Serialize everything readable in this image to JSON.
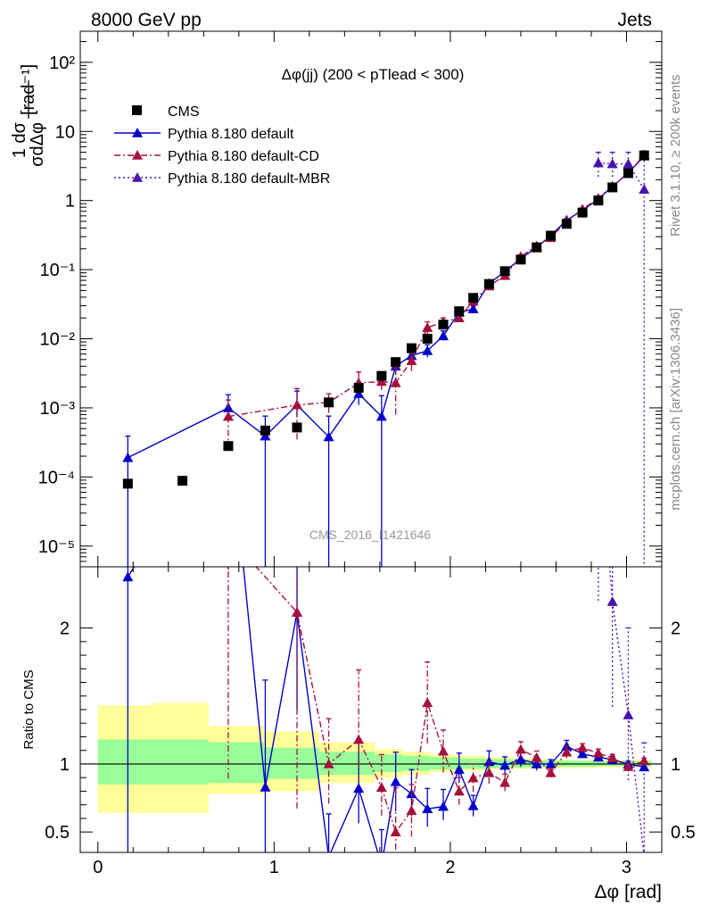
{
  "chart_data": {
    "type": "scatter",
    "header": {
      "left": "8000 GeV pp",
      "right": "Jets"
    },
    "title": "Δφ(jj) (200 < pTlead <  300)",
    "watermark": "CMS_2016_I1421646",
    "side_labels": {
      "rivet": "Rivet 3.1.10, ≥ 200k events",
      "mcplots": "mcplots.cern.ch [arXiv:1306.3436]"
    },
    "ylabel": {
      "frac_top": "1",
      "frac_top_d": "dσ",
      "frac_bottom": "σdΔφ",
      "unit": "[rad⁻¹]"
    },
    "ratio_ylabel": "Ratio to CMS",
    "xlabel": "Δφ [rad]",
    "xlim": [
      -0.1,
      3.2
    ],
    "ylim_main_log10": [
      -5.3,
      2.45
    ],
    "ratio_ylim": [
      0.35,
      2.45
    ],
    "x_ticks": [
      {
        "v": 0,
        "label": "0"
      },
      {
        "v": 1,
        "label": "1"
      },
      {
        "v": 2,
        "label": "2"
      },
      {
        "v": 3,
        "label": "3"
      }
    ],
    "main_ticks": [
      {
        "e": -5,
        "label": "10⁻⁵"
      },
      {
        "e": -4,
        "label": "10⁻⁴"
      },
      {
        "e": -3,
        "label": "10⁻³"
      },
      {
        "e": -2,
        "label": "10⁻²"
      },
      {
        "e": -1,
        "label": "10⁻¹"
      },
      {
        "e": 0,
        "label": "1"
      },
      {
        "e": 1,
        "label": "10"
      },
      {
        "e": 2,
        "label": "10²"
      }
    ],
    "ratio_ticks": [
      {
        "v": 0.5,
        "label": "0.5"
      },
      {
        "v": 1,
        "label": "1"
      },
      {
        "v": 2,
        "label": "2"
      }
    ],
    "legend": [
      {
        "label": "CMS",
        "style": "data"
      },
      {
        "label": "Pythia 8.180 default",
        "style": "solid",
        "color": "#0000cc"
      },
      {
        "label": "Pythia 8.180 default-CD",
        "style": "dashdot",
        "color": "#a6113b"
      },
      {
        "label": "Pythia 8.180 default-MBR",
        "style": "dotted",
        "color": "#4a11b0"
      }
    ],
    "bands": [
      {
        "x0": 0.0,
        "x1": 0.314,
        "g": [
          0.85,
          1.18
        ],
        "y": [
          0.64,
          1.43
        ]
      },
      {
        "x0": 0.314,
        "x1": 0.628,
        "g": [
          0.85,
          1.18
        ],
        "y": [
          0.64,
          1.45
        ]
      },
      {
        "x0": 0.628,
        "x1": 0.942,
        "g": [
          0.86,
          1.16
        ],
        "y": [
          0.78,
          1.28
        ]
      },
      {
        "x0": 0.942,
        "x1": 1.257,
        "g": [
          0.89,
          1.12
        ],
        "y": [
          0.8,
          1.24
        ]
      },
      {
        "x0": 1.257,
        "x1": 1.571,
        "g": [
          0.92,
          1.09
        ],
        "y": [
          0.86,
          1.16
        ]
      },
      {
        "x0": 1.571,
        "x1": 1.728,
        "g": [
          0.94,
          1.07
        ],
        "y": [
          0.9,
          1.11
        ]
      },
      {
        "x0": 1.728,
        "x1": 1.885,
        "g": [
          0.95,
          1.06
        ],
        "y": [
          0.92,
          1.09
        ]
      },
      {
        "x0": 1.885,
        "x1": 2.042,
        "g": [
          0.96,
          1.05
        ],
        "y": [
          0.94,
          1.07
        ]
      },
      {
        "x0": 2.042,
        "x1": 2.199,
        "g": [
          0.965,
          1.04
        ],
        "y": [
          0.95,
          1.06
        ]
      },
      {
        "x0": 2.199,
        "x1": 2.356,
        "g": [
          0.97,
          1.035
        ],
        "y": [
          0.96,
          1.05
        ]
      },
      {
        "x0": 2.356,
        "x1": 2.513,
        "g": [
          0.975,
          1.03
        ],
        "y": [
          0.965,
          1.04
        ]
      },
      {
        "x0": 2.513,
        "x1": 2.67,
        "g": [
          0.98,
          1.025
        ],
        "y": [
          0.97,
          1.035
        ]
      },
      {
        "x0": 2.67,
        "x1": 2.827,
        "g": [
          0.98,
          1.025
        ],
        "y": [
          0.97,
          1.03
        ]
      },
      {
        "x0": 2.827,
        "x1": 2.984,
        "g": [
          0.985,
          1.02
        ],
        "y": [
          0.975,
          1.03
        ]
      },
      {
        "x0": 2.984,
        "x1": 3.142,
        "g": [
          0.985,
          1.02
        ],
        "y": [
          0.975,
          1.03
        ]
      }
    ],
    "cms": [
      {
        "x": 0.17,
        "y": 8e-05
      },
      {
        "x": 0.48,
        "y": 8.8e-05
      },
      {
        "x": 0.74,
        "y": 0.00028
      },
      {
        "x": 0.95,
        "y": 0.00047
      },
      {
        "x": 1.13,
        "y": 0.00052
      },
      {
        "x": 1.31,
        "y": 0.0012
      },
      {
        "x": 1.48,
        "y": 0.00195
      },
      {
        "x": 1.61,
        "y": 0.0029
      },
      {
        "x": 1.69,
        "y": 0.0046
      },
      {
        "x": 1.78,
        "y": 0.0073
      },
      {
        "x": 1.87,
        "y": 0.01
      },
      {
        "x": 1.96,
        "y": 0.016
      },
      {
        "x": 2.05,
        "y": 0.025
      },
      {
        "x": 2.13,
        "y": 0.039
      },
      {
        "x": 2.22,
        "y": 0.062
      },
      {
        "x": 2.31,
        "y": 0.095
      },
      {
        "x": 2.4,
        "y": 0.14
      },
      {
        "x": 2.49,
        "y": 0.21
      },
      {
        "x": 2.57,
        "y": 0.31
      },
      {
        "x": 2.66,
        "y": 0.46
      },
      {
        "x": 2.75,
        "y": 0.67
      },
      {
        "x": 2.84,
        "y": 1.0
      },
      {
        "x": 2.92,
        "y": 1.55
      },
      {
        "x": 3.01,
        "y": 2.5
      },
      {
        "x": 3.1,
        "y": 4.5
      }
    ],
    "series": [
      {
        "name": "Pythia 8.180 default",
        "color": "#0000cc",
        "dash": "",
        "marker": "up",
        "points": [
          {
            "x": 0.17,
            "y": 0.00019,
            "lo": 1e-07,
            "hi": 0.00039
          },
          {
            "x": 0.74,
            "y": 0.001,
            "lo": 0.00068,
            "hi": 0.00155
          },
          {
            "x": 0.95,
            "y": 0.00039,
            "lo": 1e-07,
            "hi": 0.00076
          },
          {
            "x": 1.13,
            "y": 0.0011,
            "lo": 0.00073,
            "hi": 0.00175
          },
          {
            "x": 1.31,
            "y": 0.00038,
            "lo": 1e-07,
            "hi": 0.00076
          },
          {
            "x": 1.48,
            "y": 0.0016,
            "lo": 0.0011,
            "hi": 0.0023
          },
          {
            "x": 1.61,
            "y": 0.00075,
            "lo": 1e-07,
            "hi": 0.0015
          },
          {
            "x": 1.69,
            "y": 0.004,
            "lo": 0.003,
            "hi": 0.005
          },
          {
            "x": 1.78,
            "y": 0.0057,
            "lo": 0.0045,
            "hi": 0.007
          },
          {
            "x": 1.87,
            "y": 0.0067,
            "lo": 0.0054,
            "hi": 0.0082
          },
          {
            "x": 1.96,
            "y": 0.011,
            "lo": 0.0094,
            "hi": 0.013
          },
          {
            "x": 2.05,
            "y": 0.024,
            "lo": 0.0215,
            "hi": 0.027
          },
          {
            "x": 2.13,
            "y": 0.027,
            "lo": 0.024,
            "hi": 0.03
          },
          {
            "x": 2.22,
            "y": 0.063,
            "lo": 0.058,
            "hi": 0.068
          },
          {
            "x": 2.31,
            "y": 0.094,
            "lo": 0.088,
            "hi": 0.1
          },
          {
            "x": 2.4,
            "y": 0.145,
            "lo": 0.137,
            "hi": 0.153
          },
          {
            "x": 2.49,
            "y": 0.21,
            "lo": 0.2,
            "hi": 0.22
          },
          {
            "x": 2.57,
            "y": 0.31,
            "lo": 0.3,
            "hi": 0.32
          },
          {
            "x": 2.66,
            "y": 0.52,
            "lo": 0.5,
            "hi": 0.54
          },
          {
            "x": 2.75,
            "y": 0.72,
            "lo": 0.7,
            "hi": 0.74
          },
          {
            "x": 2.84,
            "y": 1.05,
            "lo": 1.02,
            "hi": 1.08
          },
          {
            "x": 2.92,
            "y": 1.6,
            "lo": 1.56,
            "hi": 1.64
          },
          {
            "x": 3.01,
            "y": 2.5,
            "lo": 2.45,
            "hi": 2.55
          },
          {
            "x": 3.1,
            "y": 4.4,
            "lo": 4.3,
            "hi": 4.5
          }
        ]
      },
      {
        "name": "Pythia 8.180 default-CD",
        "color": "#a6113b",
        "dash": "7 3 2 3",
        "marker": "up",
        "points": [
          {
            "x": 0.74,
            "y": 0.00075,
            "lo": 0.00025,
            "hi": 0.0013
          },
          {
            "x": 1.13,
            "y": 0.0011,
            "lo": 0.00035,
            "hi": 0.0019
          },
          {
            "x": 1.31,
            "y": 0.0012,
            "lo": 0.00085,
            "hi": 0.0016
          },
          {
            "x": 1.48,
            "y": 0.0023,
            "lo": 0.0017,
            "hi": 0.0033
          },
          {
            "x": 1.61,
            "y": 0.0024,
            "lo": 0.0018,
            "hi": 0.0031
          },
          {
            "x": 1.69,
            "y": 0.0023,
            "lo": 0.0008,
            "hi": 0.0038
          },
          {
            "x": 1.78,
            "y": 0.0048,
            "lo": 0.0034,
            "hi": 0.0062
          },
          {
            "x": 1.87,
            "y": 0.0145,
            "lo": 0.0115,
            "hi": 0.0175
          },
          {
            "x": 1.96,
            "y": 0.0175,
            "lo": 0.015,
            "hi": 0.02
          },
          {
            "x": 2.05,
            "y": 0.02,
            "lo": 0.0175,
            "hi": 0.0225
          },
          {
            "x": 2.13,
            "y": 0.035,
            "lo": 0.031,
            "hi": 0.039
          },
          {
            "x": 2.22,
            "y": 0.058,
            "lo": 0.053,
            "hi": 0.063
          },
          {
            "x": 2.31,
            "y": 0.082,
            "lo": 0.076,
            "hi": 0.088
          },
          {
            "x": 2.4,
            "y": 0.155,
            "lo": 0.147,
            "hi": 0.163
          },
          {
            "x": 2.49,
            "y": 0.22,
            "lo": 0.21,
            "hi": 0.23
          },
          {
            "x": 2.57,
            "y": 0.29,
            "lo": 0.28,
            "hi": 0.3
          },
          {
            "x": 2.66,
            "y": 0.5,
            "lo": 0.48,
            "hi": 0.52
          },
          {
            "x": 2.75,
            "y": 0.75,
            "lo": 0.73,
            "hi": 0.77
          },
          {
            "x": 2.84,
            "y": 1.08,
            "lo": 1.05,
            "hi": 1.11
          },
          {
            "x": 2.92,
            "y": 1.62,
            "lo": 1.58,
            "hi": 1.66
          },
          {
            "x": 3.01,
            "y": 2.45,
            "lo": 2.4,
            "hi": 2.5
          },
          {
            "x": 3.1,
            "y": 4.6,
            "lo": 4.5,
            "hi": 4.7
          }
        ]
      },
      {
        "name": "Pythia 8.180 default-MBR",
        "color": "#4a11b0",
        "dash": "2 3",
        "marker": "up",
        "points": [
          {
            "x": 2.84,
            "y": 3.5,
            "lo": 2.2,
            "hi": 5.0
          },
          {
            "x": 2.92,
            "y": 3.4,
            "lo": 2.2,
            "hi": 5.0
          },
          {
            "x": 3.01,
            "y": 3.4,
            "lo": 2.2,
            "hi": 5.0
          },
          {
            "x": 3.1,
            "y": 1.45,
            "lo": 1e-07,
            "hi": 5.2
          }
        ]
      }
    ]
  }
}
